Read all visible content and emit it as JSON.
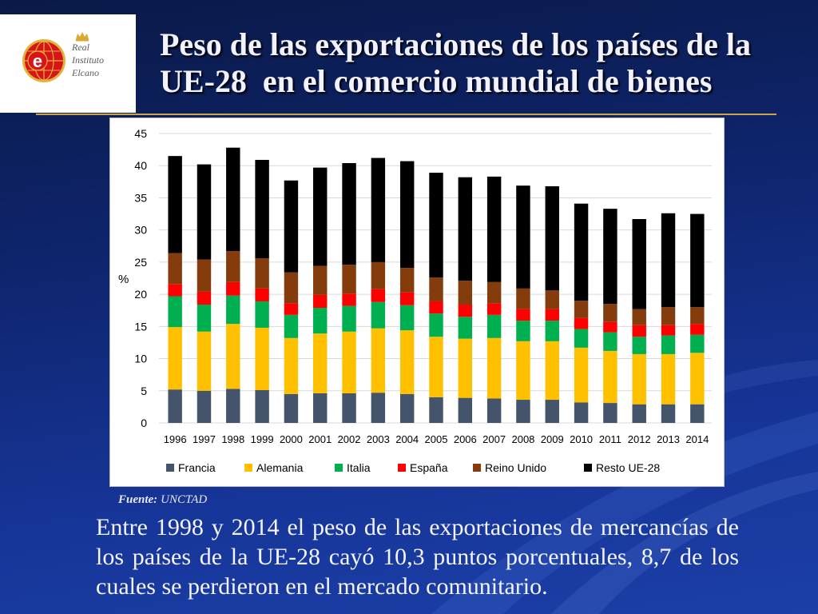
{
  "logo": {
    "mark_letter": "e",
    "line1": "Real",
    "line2": "Instituto",
    "line3": "Elcano"
  },
  "title": {
    "lines": [
      "Peso de las exportaciones de los países de la",
      "UE-28  en el comercio mundial de bienes"
    ]
  },
  "source": {
    "label": "Fuente:",
    "value": "UNCTAD"
  },
  "body": {
    "lines": [
      "Entre 1998 y 2014 el peso de las exportaciones de mercancías de",
      "los países de la UE-28 cayó 10,3 puntos porcentuales, 8,7 de los",
      "cuales se perdieron en el mercado comunitario."
    ]
  },
  "chart_data": {
    "type": "bar",
    "stacked": true,
    "title": "",
    "xlabel": "",
    "ylabel": "%",
    "ylim": [
      0,
      45
    ],
    "yticks": [
      0,
      5,
      10,
      15,
      20,
      25,
      30,
      35,
      40,
      45
    ],
    "grid": true,
    "legend_position": "bottom",
    "categories": [
      "1996",
      "1997",
      "1998",
      "1999",
      "2000",
      "2001",
      "2002",
      "2003",
      "2004",
      "2005",
      "2006",
      "2007",
      "2008",
      "2009",
      "2010",
      "2011",
      "2012",
      "2013",
      "2014"
    ],
    "series": [
      {
        "name": "Francia",
        "color": "#44546a",
        "values": [
          5.2,
          5.0,
          5.3,
          5.1,
          4.5,
          4.6,
          4.6,
          4.7,
          4.5,
          4.0,
          3.9,
          3.8,
          3.6,
          3.6,
          3.2,
          3.1,
          2.9,
          2.9,
          2.9
        ]
      },
      {
        "name": "Alemania",
        "color": "#ffc000",
        "values": [
          9.7,
          9.2,
          10.1,
          9.7,
          8.7,
          9.3,
          9.6,
          10.0,
          9.9,
          9.4,
          9.2,
          9.4,
          9.1,
          9.1,
          8.5,
          8.1,
          7.8,
          7.8,
          8.0
        ]
      },
      {
        "name": "Italia",
        "color": "#00b050",
        "values": [
          4.8,
          4.2,
          4.4,
          4.1,
          3.6,
          4.0,
          4.0,
          4.1,
          3.9,
          3.6,
          3.4,
          3.6,
          3.2,
          3.2,
          2.9,
          2.9,
          2.7,
          2.9,
          2.8
        ]
      },
      {
        "name": "España",
        "color": "#ff0000",
        "values": [
          1.9,
          2.0,
          2.1,
          2.0,
          1.8,
          2.0,
          1.9,
          2.0,
          2.0,
          1.9,
          1.9,
          1.8,
          1.8,
          1.8,
          1.7,
          1.6,
          1.8,
          1.6,
          1.7
        ]
      },
      {
        "name": "Reino Unido",
        "color": "#843c0c",
        "values": [
          4.8,
          5.0,
          4.8,
          4.7,
          4.8,
          4.5,
          4.5,
          4.2,
          3.8,
          3.7,
          3.7,
          3.3,
          3.2,
          2.9,
          2.7,
          2.8,
          2.5,
          2.8,
          2.6
        ]
      },
      {
        "name": "Resto UE-28",
        "color": "#000000",
        "values": [
          15.1,
          14.8,
          16.1,
          15.3,
          14.3,
          15.3,
          15.8,
          16.2,
          16.6,
          16.3,
          16.1,
          16.4,
          16.0,
          16.2,
          15.1,
          14.8,
          14.0,
          14.6,
          14.5
        ]
      }
    ]
  }
}
